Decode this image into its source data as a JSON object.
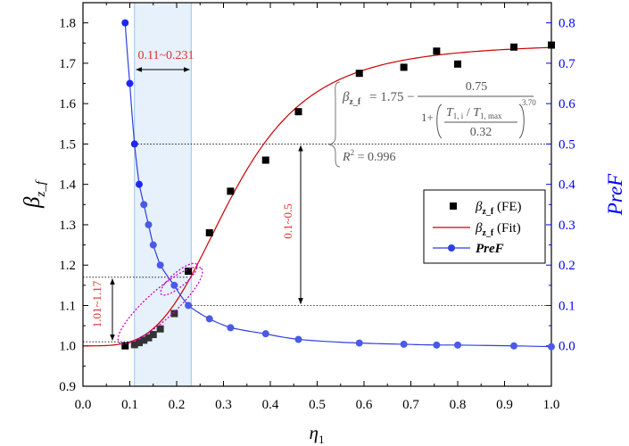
{
  "chart_data": {
    "type": "scatter",
    "x_axis": {
      "label": "η",
      "label_sub": "1",
      "range": [
        0.0,
        1.0
      ],
      "ticks": [
        "0.0",
        "0.1",
        "0.2",
        "0.3",
        "0.4",
        "0.5",
        "0.6",
        "0.7",
        "0.8",
        "0.9",
        "1.0"
      ],
      "tick_values": [
        0.0,
        0.1,
        0.2,
        0.3,
        0.4,
        0.5,
        0.6,
        0.7,
        0.8,
        0.9,
        1.0
      ]
    },
    "y_left": {
      "label": "β",
      "label_sub": "z_f",
      "range": [
        0.9,
        1.85
      ],
      "ticks": [
        "0.9",
        "1.0",
        "1.1",
        "1.2",
        "1.3",
        "1.4",
        "1.5",
        "1.6",
        "1.7",
        "1.8"
      ],
      "tick_values": [
        0.9,
        1.0,
        1.1,
        1.2,
        1.3,
        1.4,
        1.5,
        1.6,
        1.7,
        1.8
      ],
      "color": "#000000"
    },
    "y_right": {
      "label": "PreF",
      "range": [
        -0.1,
        0.85
      ],
      "ticks": [
        "0.0",
        "0.1",
        "0.2",
        "0.3",
        "0.4",
        "0.5",
        "0.6",
        "0.7",
        "0.8"
      ],
      "tick_values": [
        0.0,
        0.1,
        0.2,
        0.3,
        0.4,
        0.5,
        0.6,
        0.7,
        0.8
      ],
      "color": "#0000ff"
    },
    "series": [
      {
        "name": "β",
        "name_sub": "z_f",
        "name_suffix": " (FE)",
        "kind": "scatter-square",
        "axis": "left",
        "color": "#000000",
        "x": [
          0.09,
          0.11,
          0.12,
          0.13,
          0.14,
          0.15,
          0.165,
          0.195,
          0.225,
          0.27,
          0.315,
          0.39,
          0.46,
          0.59,
          0.685,
          0.755,
          0.8,
          0.92,
          1.0
        ],
        "y": [
          1.0,
          1.003,
          1.008,
          1.014,
          1.02,
          1.028,
          1.042,
          1.08,
          1.185,
          1.28,
          1.383,
          1.46,
          1.58,
          1.675,
          1.69,
          1.73,
          1.698,
          1.74,
          1.745
        ]
      },
      {
        "name": "β",
        "name_sub": "z_f",
        "name_suffix": " (Fit)",
        "kind": "line",
        "axis": "left",
        "color": "#cc0000",
        "formula": {
          "A": 1.75,
          "B": 0.75,
          "T_ratio": 0.32,
          "p": 3.7
        }
      },
      {
        "name": "PreF",
        "kind": "line-circle",
        "axis": "right",
        "color": "#0000ff",
        "x": [
          0.09,
          0.1,
          0.11,
          0.12,
          0.13,
          0.14,
          0.15,
          0.165,
          0.195,
          0.225,
          0.27,
          0.315,
          0.39,
          0.46,
          0.59,
          0.685,
          0.755,
          0.8,
          0.92,
          1.0
        ],
        "y": [
          0.8,
          0.65,
          0.5,
          0.4,
          0.35,
          0.3,
          0.25,
          0.2,
          0.15,
          0.1,
          0.067,
          0.045,
          0.03,
          0.016,
          0.007,
          0.004,
          0.002,
          0.002,
          0.0,
          -0.002
        ]
      }
    ],
    "annotations": {
      "range_x": "0.11~0.231",
      "range_x_values": [
        0.11,
        0.231
      ],
      "range_y": "1.01~1.17",
      "range_y_values": [
        1.01,
        1.17
      ],
      "range_pref": "0.1~0.5",
      "range_pref_values": [
        0.1,
        0.5
      ],
      "r2": "R",
      "r2_sup": "2",
      "r2_value": " = 0.996",
      "eq_lhs": "β",
      "eq_lhs_sub": "z_f",
      "eq_a": "= 1.75 −",
      "eq_num": "0.75",
      "eq_one": "1+",
      "eq_t1": "T",
      "eq_t1_sub": "1, i",
      "eq_slash": " / ",
      "eq_t2": "T",
      "eq_t2_sub": "1, max",
      "eq_den": "0.32",
      "eq_exp": "3.70"
    },
    "legend_placement": "middle-right",
    "grid": false
  }
}
